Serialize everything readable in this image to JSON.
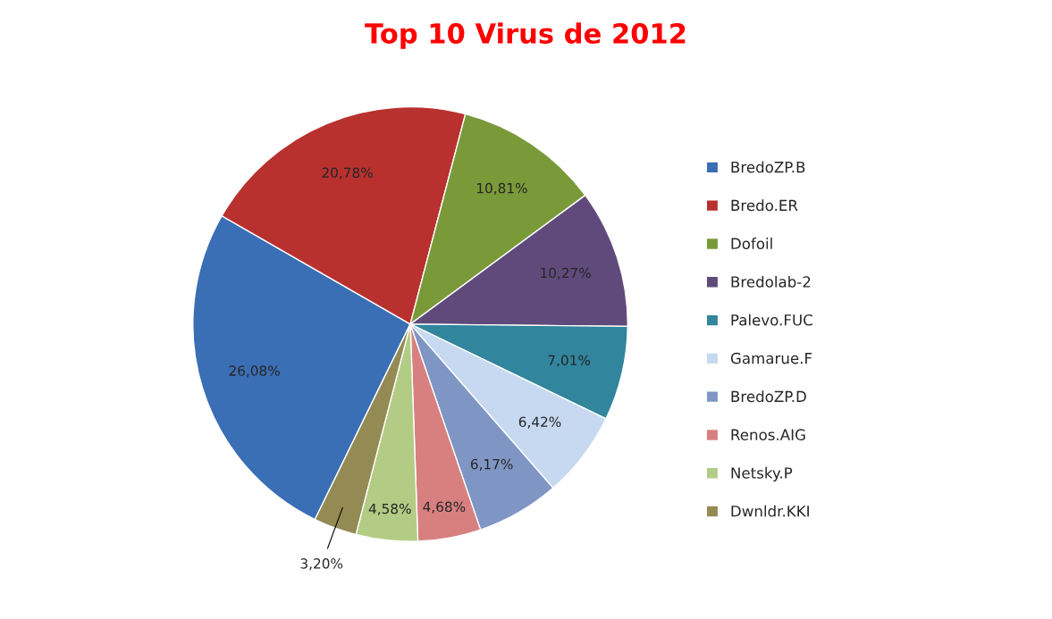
{
  "chart_data": {
    "type": "pie",
    "title": "Top 10 Virus de 2012",
    "categories": [
      "BredoZP.B",
      "Bredo.ER",
      "Dofoil",
      "Bredolab-2",
      "Palevo.FUC",
      "Gamarue.F",
      "BredoZP.D",
      "Renos.AIG",
      "Netsky.P",
      "Dwnldr.KKI"
    ],
    "values": [
      26.08,
      20.78,
      10.81,
      10.27,
      7.01,
      6.42,
      6.17,
      4.68,
      4.58,
      3.2
    ],
    "colors": [
      "#3a6eb5",
      "#b8312f",
      "#7a9a3a",
      "#604a7b",
      "#31859c",
      "#c6d9f0",
      "#7f96c4",
      "#d88080",
      "#b3cc85",
      "#948a54"
    ],
    "value_labels": [
      "26,08%",
      "20,78%",
      "10,81%",
      "10,27%",
      "7,01%",
      "6,42%",
      "6,17%",
      "4,68%",
      "4,58%",
      "3,20%"
    ],
    "legend": "right"
  }
}
